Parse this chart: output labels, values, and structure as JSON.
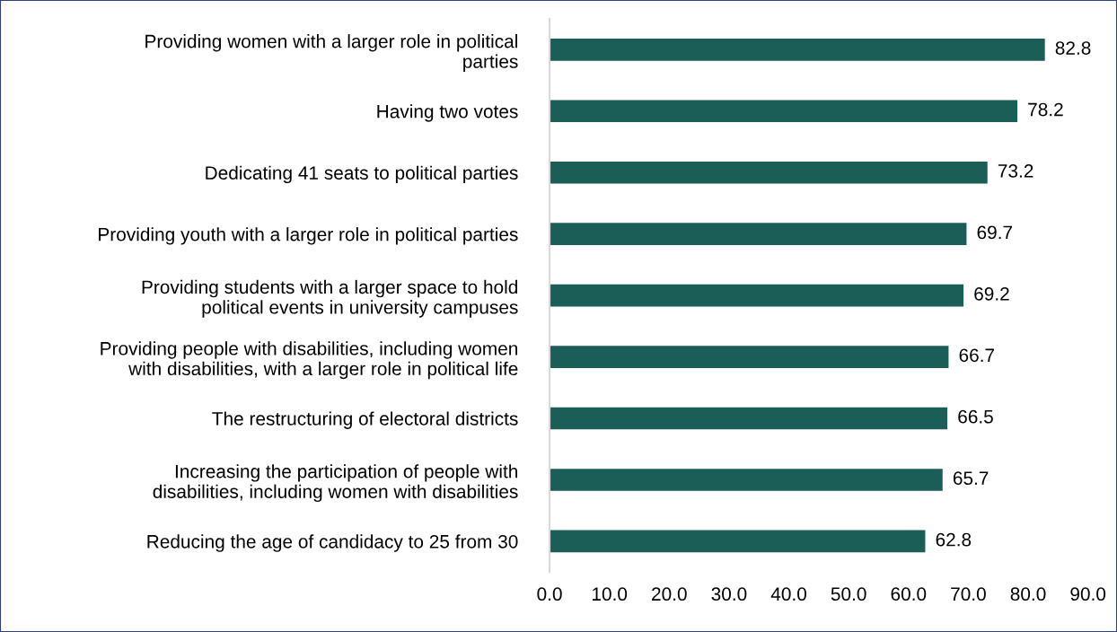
{
  "chart_data": {
    "type": "bar",
    "orientation": "horizontal",
    "categories": [
      "Providing women with a larger role in political\nparties",
      "Having two votes",
      "Dedicating 41 seats to political parties",
      "Providing youth with a larger role in political parties",
      "Providing students with a larger space to hold\npolitical events in university campuses",
      "Providing people with disabilities, including women\nwith disabilities, with a larger role in political life",
      "The restructuring of electoral districts",
      "Increasing the participation of people with\ndisabilities, including women with disabilities",
      "Reducing the age of candidacy to 25 from 30"
    ],
    "values": [
      82.8,
      78.2,
      73.2,
      69.7,
      69.2,
      66.7,
      66.5,
      65.7,
      62.8
    ],
    "color": "#1b5e58",
    "xlim": [
      0,
      90
    ],
    "xticks": [
      {
        "value": 0,
        "label": "0.0"
      },
      {
        "value": 10,
        "label": "10.0"
      },
      {
        "value": 20,
        "label": "20.0"
      },
      {
        "value": 30,
        "label": "30.0"
      },
      {
        "value": 40,
        "label": "40.0"
      },
      {
        "value": 50,
        "label": "50.0"
      },
      {
        "value": 60,
        "label": "60.0"
      },
      {
        "value": 70,
        "label": "70.0"
      },
      {
        "value": 80,
        "label": "80.0"
      },
      {
        "value": 90,
        "label": "90.0"
      }
    ],
    "data_labels": true,
    "grid": false,
    "legend": false
  }
}
